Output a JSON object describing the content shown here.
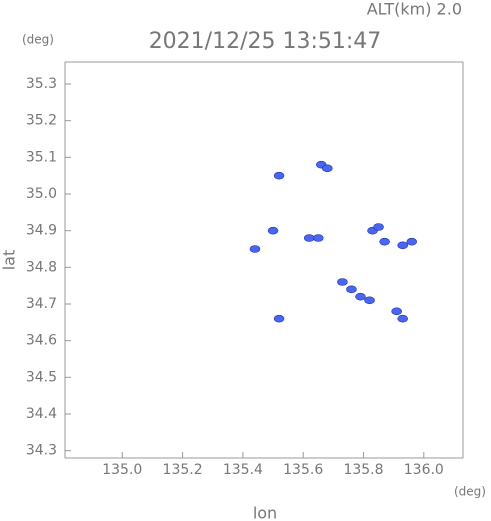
{
  "chart_data": {
    "type": "scatter",
    "title": "2021/12/25 13:51:47",
    "subtitle": "ALT(km) 2.0",
    "x_label": "lon",
    "y_label": "lat",
    "x_unit": "(deg)",
    "y_unit": "(deg)",
    "color": "#4a66f0",
    "xlim": [
      134.81,
      136.13
    ],
    "ylim": [
      34.28,
      35.36
    ],
    "xticks": [
      {
        "value": 135.0,
        "label": "135.0"
      },
      135.2,
      135.4,
      135.6,
      135.8,
      {
        "value": 136.0,
        "label": "136.0"
      }
    ],
    "yticks": [
      34.3,
      34.4,
      34.5,
      34.6,
      34.7,
      34.8,
      34.9,
      {
        "value": 35.0,
        "label": "35.0"
      },
      35.1,
      35.2,
      35.3
    ],
    "x": [
      135.52,
      135.66,
      135.68,
      135.5,
      135.44,
      135.62,
      135.65,
      135.83,
      135.85,
      135.87,
      135.93,
      135.96,
      135.73,
      135.76,
      135.79,
      135.82,
      135.91,
      135.93,
      135.52
    ],
    "y": [
      35.05,
      35.08,
      35.07,
      34.9,
      34.85,
      34.88,
      34.88,
      34.9,
      34.91,
      34.87,
      34.86,
      34.87,
      34.76,
      34.74,
      34.72,
      34.71,
      34.68,
      34.66,
      34.66
    ]
  }
}
